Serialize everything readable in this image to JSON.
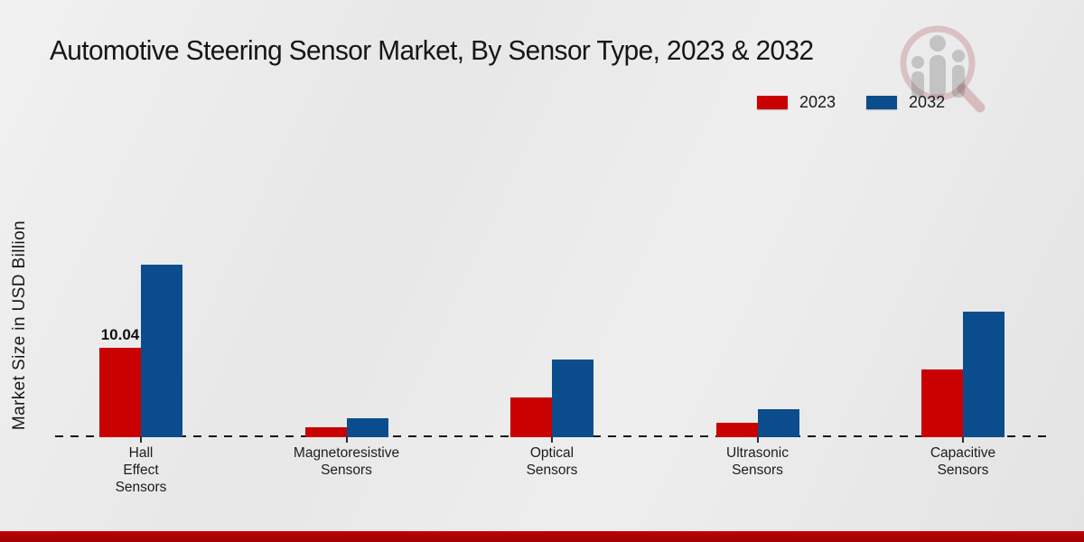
{
  "title": "Automotive Steering Sensor Market, By Sensor Type, 2023 & 2032",
  "y_axis_label": "Market Size in USD Billion",
  "legend": {
    "items": [
      {
        "label": "2023",
        "color": "#c90101"
      },
      {
        "label": "2032",
        "color": "#0b4d8c"
      }
    ]
  },
  "chart_data": {
    "type": "bar",
    "title": "Automotive Steering Sensor Market, By Sensor Type, 2023 & 2032",
    "xlabel": "",
    "ylabel": "Market Size in USD Billion",
    "legend_position": "top-right",
    "grid": false,
    "baseline_style": "dashed",
    "value_unit": "USD Billion",
    "ylim": [
      0,
      20
    ],
    "categories": [
      "Hall Effect Sensors",
      "Magnetoresistive Sensors",
      "Optical Sensors",
      "Ultrasonic Sensors",
      "Capacitive Sensors"
    ],
    "category_label_lines": [
      [
        "Hall",
        "Effect",
        "Sensors"
      ],
      [
        "Magnetoresistive",
        "Sensors"
      ],
      [
        "Optical",
        "Sensors"
      ],
      [
        "Ultrasonic",
        "Sensors"
      ],
      [
        "Capacitive",
        "Sensors"
      ]
    ],
    "series": [
      {
        "name": "2023",
        "color": "#c90101",
        "values": [
          10.04,
          1.1,
          4.5,
          1.6,
          7.6
        ]
      },
      {
        "name": "2032",
        "color": "#0b4d8c",
        "values": [
          19.4,
          2.1,
          8.7,
          3.1,
          14.1
        ]
      }
    ],
    "data_labels": [
      {
        "series_index": 0,
        "category_index": 0,
        "text": "10.04"
      }
    ]
  },
  "colors": {
    "background": "#e9e9e9",
    "footer_bar": "#b00202",
    "baseline": "#161616",
    "text": "#1a1a1a"
  },
  "watermark_name": "magnifier-bar-chart-logo"
}
